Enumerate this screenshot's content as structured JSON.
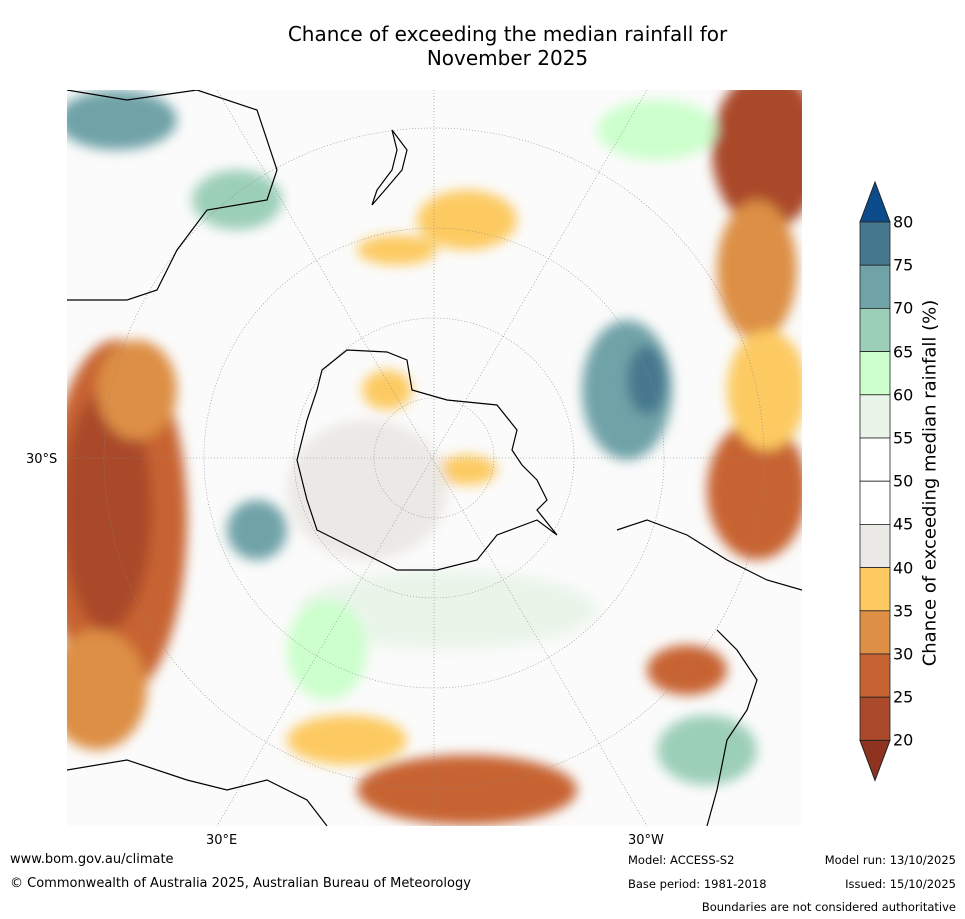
{
  "title_line1": "Chance of exceeding the median rainfall for",
  "title_line2": "November 2025",
  "map": {
    "lat_label": "30°S",
    "lon_label_east": "30°E",
    "lon_label_west": "30°W"
  },
  "colorbar": {
    "label": "Chance of exceeding median rainfall (%)",
    "ticks": [
      "80",
      "75",
      "70",
      "65",
      "60",
      "55",
      "50",
      "45",
      "40",
      "35",
      "30",
      "25",
      "20"
    ],
    "over_color": "#0d4c8a",
    "under_color": "#8e3320",
    "band_colors": [
      "#46788f",
      "#6fa3a8",
      "#9ccfb8",
      "#ccffcc",
      "#eaf5ea",
      "#ffffff",
      "#ffffff",
      "#ebe9e5",
      "#fdca62",
      "#dd8f45",
      "#c76332",
      "#aa4a2a"
    ]
  },
  "footer": {
    "website": "www.bom.gov.au/climate",
    "copyright": "© Commonwealth of Australia 2025, Australian Bureau of Meteorology",
    "model": "Model: ACCESS-S2",
    "base_period": "Base period: 1981-2018",
    "model_run": "Model run: 13/10/2025",
    "issued": "Issued: 15/10/2025",
    "disclaimer": "Boundaries are not considered authoritative"
  }
}
